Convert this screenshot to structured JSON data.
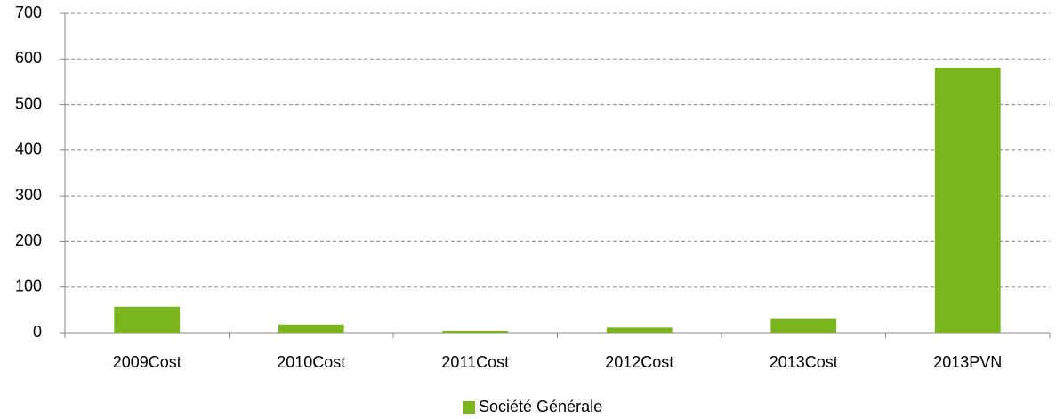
{
  "chart_data": {
    "type": "bar",
    "categories": [
      "2009Cost",
      "2010Cost",
      "2011Cost",
      "2012Cost",
      "2013Cost",
      "2013PVN"
    ],
    "series": [
      {
        "name": "Société Générale",
        "color": "#7ab51d",
        "values": [
          57,
          18,
          4,
          11,
          30,
          581
        ]
      }
    ],
    "ylim": [
      0,
      700
    ],
    "yticks": [
      0,
      100,
      200,
      300,
      400,
      500,
      600,
      700
    ],
    "grid": true,
    "legend": "bottom"
  }
}
